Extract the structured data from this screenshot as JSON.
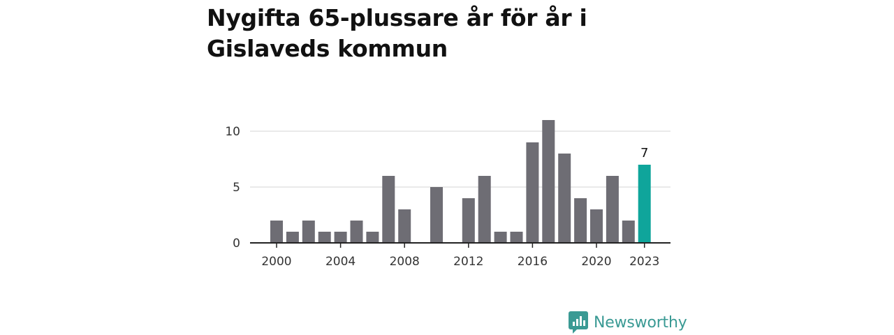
{
  "brand": {
    "name": "Newsworthy",
    "color": "#3a9a94"
  },
  "chart_data": {
    "type": "bar",
    "title": "Nygifta 65-plussare år för år i Gislaveds kommun",
    "xlabel": "",
    "ylabel": "",
    "x": [
      2000,
      2001,
      2002,
      2003,
      2004,
      2005,
      2006,
      2007,
      2008,
      2009,
      2010,
      2011,
      2012,
      2013,
      2014,
      2015,
      2016,
      2017,
      2018,
      2019,
      2020,
      2021,
      2022,
      2023
    ],
    "values": [
      2,
      1,
      2,
      1,
      1,
      2,
      1,
      6,
      3,
      0,
      5,
      0,
      4,
      6,
      1,
      1,
      9,
      11,
      8,
      4,
      3,
      6,
      2,
      7
    ],
    "ylim": [
      0,
      12
    ],
    "yticks": [
      0,
      5,
      10
    ],
    "xtick_labels": [
      "2000",
      "2004",
      "2008",
      "2012",
      "2016",
      "2020",
      "2023"
    ],
    "highlight": {
      "x": 2023,
      "label": "7"
    },
    "grid": true,
    "colors": {
      "bar": "#6e6d74",
      "highlight": "#0fa59b",
      "grid": "#dddddd",
      "axis": "#222222"
    }
  }
}
